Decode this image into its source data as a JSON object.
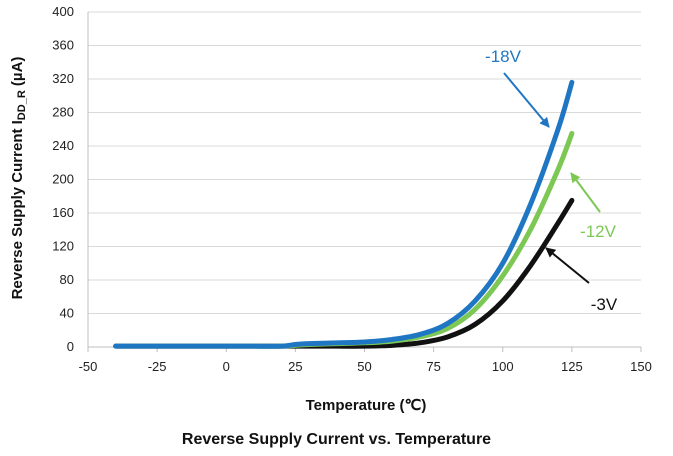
{
  "chart_data": {
    "type": "line",
    "title": "Reverse Supply Current vs. Temperature",
    "xlabel": "Temperature (℃)",
    "ylabel_main": "Reverse Supply Current I",
    "ylabel_sub": "DD_R",
    "ylabel_unit": " (µA)",
    "xlim": [
      -50,
      150
    ],
    "ylim": [
      0,
      400
    ],
    "xticks": [
      -50,
      -25,
      0,
      25,
      50,
      75,
      100,
      125,
      150
    ],
    "yticks": [
      0,
      40,
      80,
      120,
      160,
      200,
      240,
      280,
      320,
      360,
      400
    ],
    "grid": "horizontal",
    "series": [
      {
        "name": "-18V",
        "color": "#1f77c4",
        "x": [
          -40,
          -25,
          0,
          10,
          20,
          25,
          30,
          40,
          50,
          60,
          70,
          80,
          90,
          100,
          110,
          120,
          125
        ],
        "y": [
          1,
          1,
          1,
          1,
          1,
          3,
          4,
          5,
          6,
          9,
          15,
          28,
          55,
          100,
          170,
          260,
          316
        ]
      },
      {
        "name": "-12V",
        "color": "#7dc855",
        "x": [
          -40,
          -25,
          0,
          10,
          20,
          25,
          30,
          40,
          50,
          60,
          70,
          80,
          90,
          100,
          110,
          120,
          125
        ],
        "y": [
          1,
          1,
          1,
          1,
          1,
          2,
          3,
          4,
          5,
          7,
          12,
          22,
          45,
          85,
          140,
          212,
          255
        ]
      },
      {
        "name": "-3V",
        "color": "#111111",
        "x": [
          -40,
          -25,
          0,
          10,
          20,
          25,
          30,
          40,
          50,
          60,
          70,
          80,
          90,
          100,
          110,
          120,
          125
        ],
        "y": [
          1,
          1,
          1,
          1,
          1,
          1,
          1,
          1,
          1,
          2,
          5,
          12,
          27,
          55,
          97,
          148,
          175
        ]
      }
    ],
    "annotations": [
      {
        "text": "-18V",
        "color": "#1f77c4"
      },
      {
        "text": "-12V",
        "color": "#7dc855"
      },
      {
        "text": "-3V",
        "color": "#111111"
      }
    ]
  }
}
